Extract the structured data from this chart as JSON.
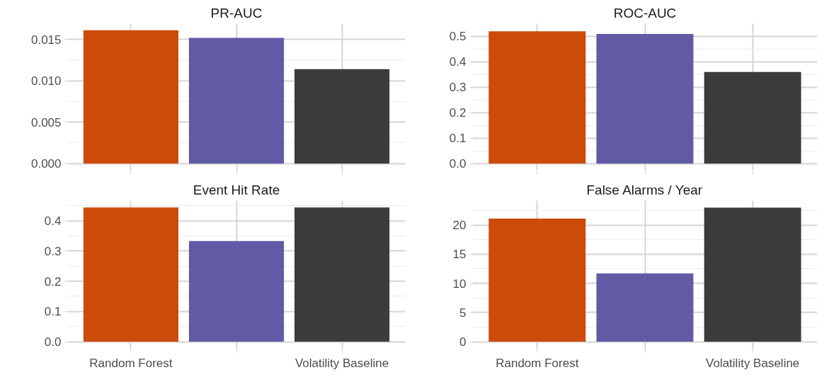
{
  "chart_data": [
    {
      "type": "bar",
      "title": "PR-AUC",
      "categories": [
        null,
        null,
        null
      ],
      "values": [
        0.0161,
        0.0152,
        0.0114
      ],
      "colors": [
        "#cc4a0a",
        "#615aa5",
        "#3c3c3c"
      ],
      "ylim": [
        -0.0008,
        0.0169
      ],
      "yticks": [
        {
          "value": 0,
          "label": "0.000"
        },
        {
          "value": 0.005,
          "label": "0.005"
        },
        {
          "value": 0.01,
          "label": "0.010"
        },
        {
          "value": 0.015,
          "label": "0.015"
        }
      ],
      "grid": true,
      "tick_labels": "y"
    },
    {
      "type": "bar",
      "title": "ROC-AUC",
      "categories": [
        null,
        null,
        null
      ],
      "values": [
        0.52,
        0.51,
        0.36
      ],
      "colors": [
        "#cc4a0a",
        "#615aa5",
        "#3c3c3c"
      ],
      "ylim": [
        -0.026,
        0.55
      ],
      "yticks": [
        {
          "value": 0,
          "label": "0.0"
        },
        0.1,
        0.2,
        0.3,
        0.4,
        0.5
      ],
      "grid": true,
      "tick_labels": "y"
    },
    {
      "type": "bar",
      "title": "Event Hit Rate",
      "categories": [
        "Random Forest",
        null,
        "Volatility Baseline"
      ],
      "values": [
        0.444,
        0.333,
        0.444
      ],
      "colors": [
        "#cc4a0a",
        "#615aa5",
        "#3c3c3c"
      ],
      "ylim": [
        -0.022,
        0.467
      ],
      "yticks": [
        {
          "value": 0,
          "label": "0.0"
        },
        0.1,
        0.2,
        0.3,
        0.4
      ],
      "grid": true
    },
    {
      "type": "bar",
      "title": "False Alarms / Year",
      "categories": [
        "Random Forest",
        null,
        "Volatility Baseline"
      ],
      "values": [
        21.1,
        11.7,
        23.0
      ],
      "colors": [
        "#cc4a0a",
        "#615aa5",
        "#3c3c3c"
      ],
      "ylim": [
        -1.15,
        24.2
      ],
      "yticks": [
        0,
        5,
        10,
        15,
        20
      ],
      "grid": true
    }
  ]
}
